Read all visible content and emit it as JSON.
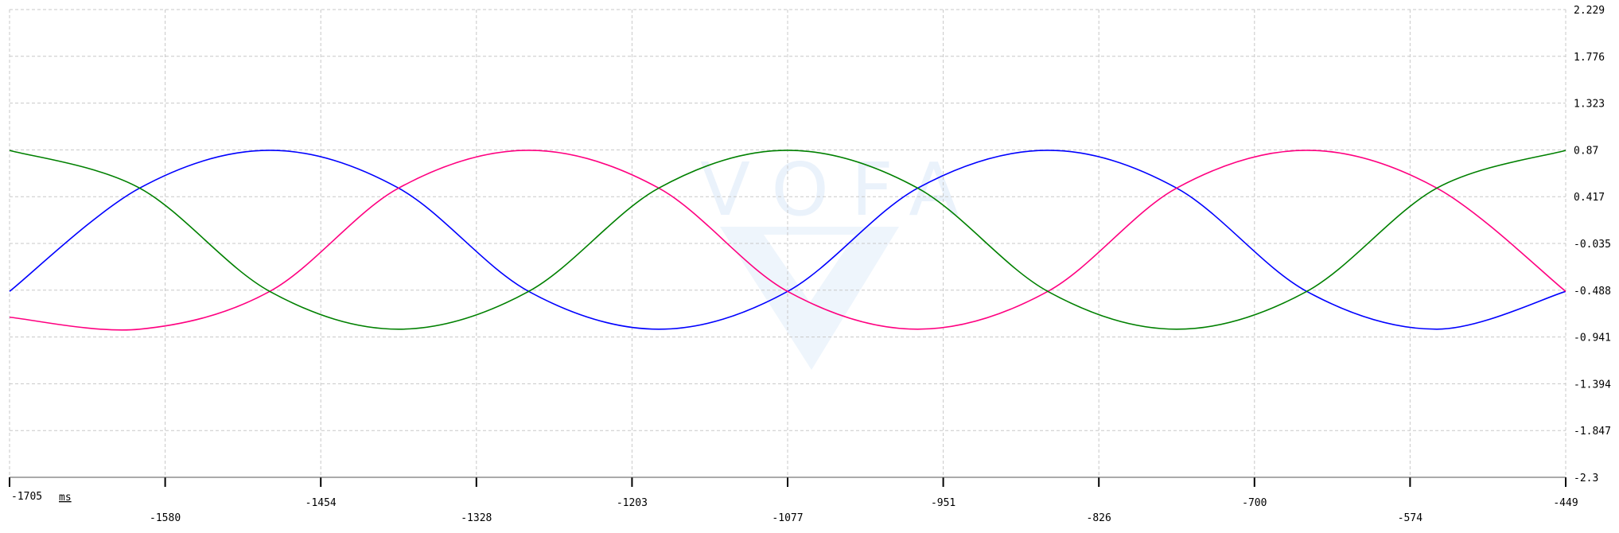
{
  "chart_data": {
    "type": "line",
    "title": "",
    "x_unit": "ms",
    "xlim": [
      -1705,
      -449
    ],
    "ylim": [
      -2.3,
      2.229
    ],
    "x_ticks": [
      "-1705",
      "-1580",
      "-1454",
      "-1328",
      "-1203",
      "-1077",
      "-951",
      "-826",
      "-700",
      "-574",
      "-449"
    ],
    "y_ticks": [
      "2.229",
      "1.776",
      "1.323",
      "0.87",
      "0.417",
      "-0.035",
      "-0.488",
      "-0.941",
      "-1.394",
      "-1.847",
      "-2.3"
    ],
    "grid": true,
    "watermark": "VOFA",
    "series": [
      {
        "color": "#0000ff",
        "x": [
          -1705,
          -1600,
          -1495,
          -1391,
          -1286,
          -1181,
          -1077,
          -972,
          -867,
          -763,
          -658,
          -553,
          -449
        ],
        "y": [
          -0.5,
          0.5,
          0.866,
          0.5,
          -0.5,
          -0.866,
          -0.5,
          0.5,
          0.866,
          0.5,
          -0.5,
          -0.866,
          -0.5
        ]
      },
      {
        "color": "#ff0080",
        "x": [
          -1705,
          -1600,
          -1495,
          -1391,
          -1286,
          -1181,
          -1077,
          -972,
          -867,
          -763,
          -658,
          -553,
          -449
        ],
        "y": [
          -0.75,
          -0.866,
          -0.5,
          0.5,
          0.866,
          0.5,
          -0.5,
          -0.866,
          -0.5,
          0.5,
          0.866,
          0.5,
          -0.5
        ]
      },
      {
        "color": "#008000",
        "x": [
          -1705,
          -1600,
          -1495,
          -1391,
          -1286,
          -1181,
          -1077,
          -972,
          -867,
          -763,
          -658,
          -553,
          -449
        ],
        "y": [
          0.866,
          0.5,
          -0.5,
          -0.866,
          -0.5,
          0.5,
          0.866,
          0.5,
          -0.5,
          -0.866,
          -0.5,
          0.5,
          0.866
        ]
      }
    ]
  }
}
